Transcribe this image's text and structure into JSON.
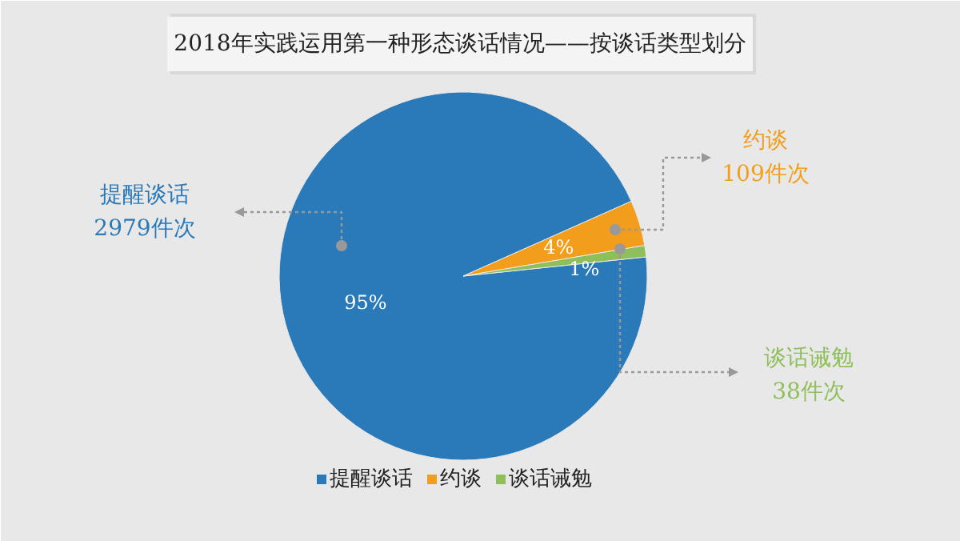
{
  "chart_data": {
    "type": "pie",
    "title": "2018年实践运用第一种形态谈话情况——按谈话类型划分",
    "categories": [
      "提醒谈话",
      "约谈",
      "谈话诫勉"
    ],
    "values": [
      95,
      4,
      1
    ],
    "colors": [
      "#2a7ab9",
      "#f29d1b",
      "#8fbf5a"
    ],
    "value_labels": [
      "95%",
      "4%",
      "1%"
    ],
    "annotations": [
      "提醒谈话\n2979件次",
      "约谈\n109件次",
      "谈话诫勉\n38件次"
    ],
    "legend": "bottom"
  }
}
